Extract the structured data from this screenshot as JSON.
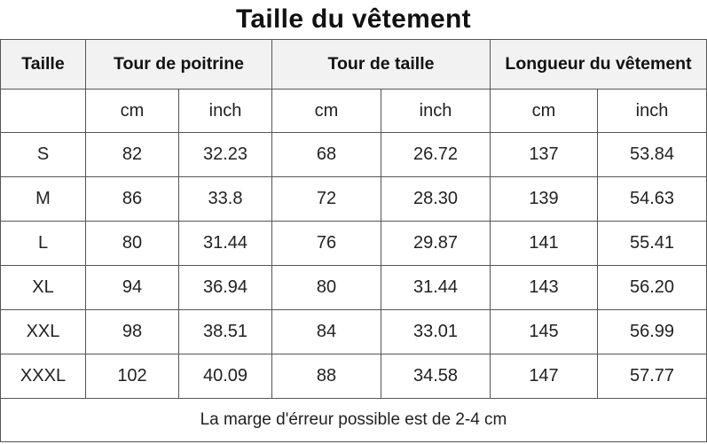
{
  "title": "Taille du vêtement",
  "headers": {
    "size": "Taille",
    "chest": "Tour de poitrine",
    "waist": "Tour de taille",
    "length": "Longueur du vêtement"
  },
  "units": [
    "cm",
    "inch",
    "cm",
    "inch",
    "cm",
    "inch"
  ],
  "rows": [
    {
      "size": "S",
      "chest_cm": "82",
      "chest_in": "32.23",
      "waist_cm": "68",
      "waist_in": "26.72",
      "length_cm": "137",
      "length_in": "53.84"
    },
    {
      "size": "M",
      "chest_cm": "86",
      "chest_in": "33.8",
      "waist_cm": "72",
      "waist_in": "28.30",
      "length_cm": "139",
      "length_in": "54.63"
    },
    {
      "size": "L",
      "chest_cm": "80",
      "chest_in": "31.44",
      "waist_cm": "76",
      "waist_in": "29.87",
      "length_cm": "141",
      "length_in": "55.41"
    },
    {
      "size": "XL",
      "chest_cm": "94",
      "chest_in": "36.94",
      "waist_cm": "80",
      "waist_in": "31.44",
      "length_cm": "143",
      "length_in": "56.20"
    },
    {
      "size": "XXL",
      "chest_cm": "98",
      "chest_in": "38.51",
      "waist_cm": "84",
      "waist_in": "33.01",
      "length_cm": "145",
      "length_in": "56.99"
    },
    {
      "size": "XXXL",
      "chest_cm": "102",
      "chest_in": "40.09",
      "waist_cm": "88",
      "waist_in": "34.58",
      "length_cm": "147",
      "length_in": "57.77"
    }
  ],
  "note": "La marge d'érreur possible est de 2-4 cm",
  "colors": {
    "header_bg": "#f2f2f2",
    "border": "#555555",
    "text": "#222222"
  }
}
